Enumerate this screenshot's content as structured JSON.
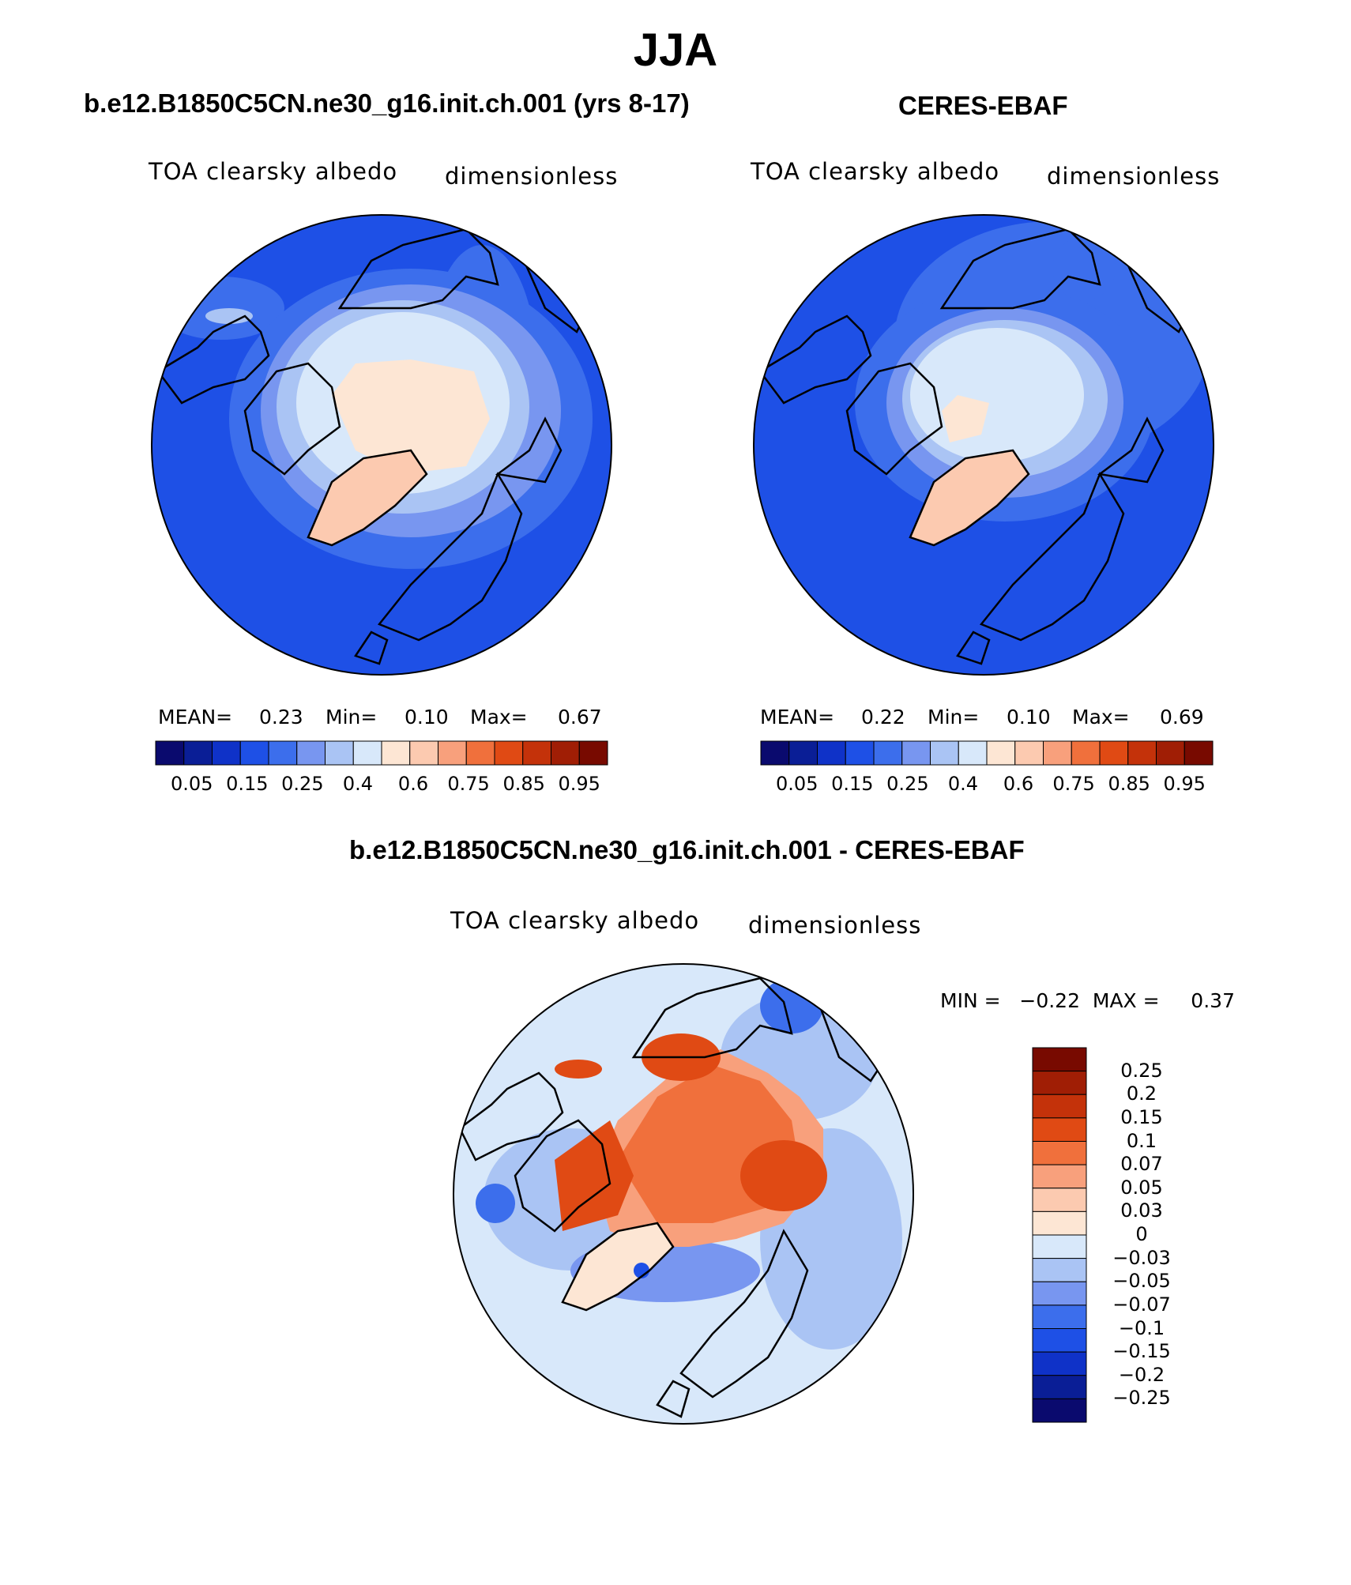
{
  "title": "JJA",
  "panels": [
    {
      "heading": "b.e12.B1850C5CN.ne30_g16.init.ch.001 (yrs 8-17)",
      "variable": "TOA clearsky albedo",
      "units": "dimensionless",
      "stats": {
        "mean_label": "MEAN=",
        "mean": "0.23",
        "min_label": "Min=",
        "min": "0.10",
        "max_label": "Max=",
        "max": "0.67"
      }
    },
    {
      "heading": "CERES-EBAF",
      "variable": "TOA clearsky albedo",
      "units": "dimensionless",
      "stats": {
        "mean_label": "MEAN=",
        "mean": "0.22",
        "min_label": "Min=",
        "min": "0.10",
        "max_label": "Max=",
        "max": "0.69"
      }
    },
    {
      "heading": "b.e12.B1850C5CN.ne30_g16.init.ch.001 - CERES-EBAF",
      "variable": "TOA clearsky albedo",
      "units": "dimensionless",
      "minmax": "MIN =   −0.22  MAX =     0.37"
    }
  ],
  "colorbar_abs": {
    "colors": [
      "#0a0a6e",
      "#0a1e96",
      "#0f32c8",
      "#1e50e6",
      "#3c6eec",
      "#7896f0",
      "#aac4f4",
      "#d8e8fa",
      "#fde6d4",
      "#fccab0",
      "#f8a07c",
      "#f0703c",
      "#e04a14",
      "#c4320a",
      "#a01e05",
      "#780a00"
    ],
    "ticks": [
      "0.05",
      "0.15",
      "0.25",
      "0.4",
      "0.6",
      "0.75",
      "0.85",
      "0.95"
    ]
  },
  "colorbar_diff": {
    "colors_top_to_bottom": [
      "#780a00",
      "#a01e05",
      "#c4320a",
      "#e04a14",
      "#f0703c",
      "#f8a07c",
      "#fccab0",
      "#fde6d4",
      "#d8e8fa",
      "#aac4f4",
      "#7896f0",
      "#3c6eec",
      "#1e50e6",
      "#0f32c8",
      "#0a1e96",
      "#0a0a6e"
    ],
    "ticks": [
      "0.25",
      "0.2",
      "0.15",
      "0.1",
      "0.07",
      "0.05",
      "0.03",
      "0",
      "−0.03",
      "−0.05",
      "−0.07",
      "−0.1",
      "−0.15",
      "−0.2",
      "−0.25"
    ]
  },
  "map_colors": {
    "ocean_abs": "#1e50e6",
    "ice_abs": "#fde6d4",
    "greenland_abs": "#fccab0",
    "ocean_diff": "#d8e8fa",
    "positive_diff": "#f0703c",
    "strong_diff": "#e04a14",
    "negative_diff": "#7896f0"
  }
}
